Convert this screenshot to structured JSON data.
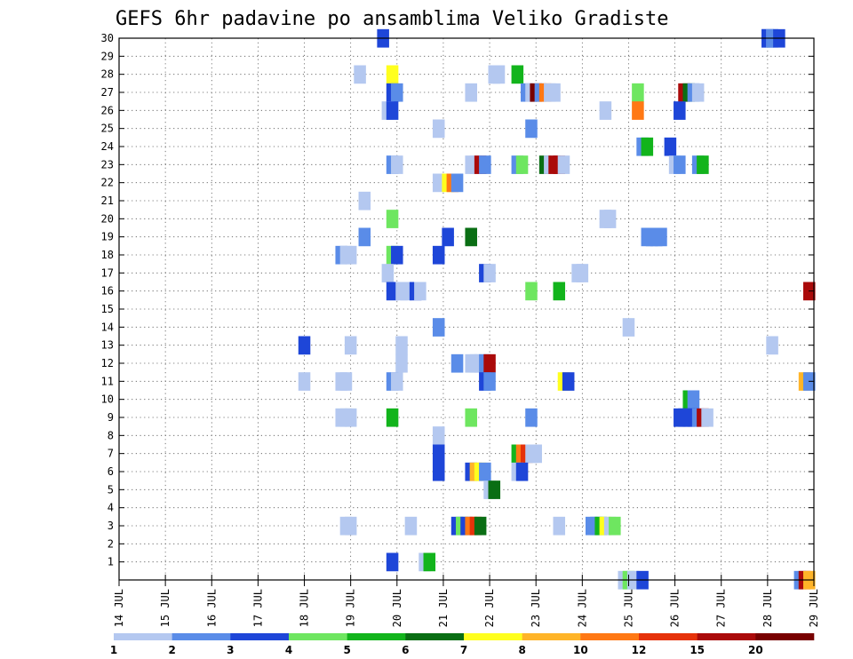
{
  "chart_data": {
    "type": "heatmap",
    "title": "GEFS 6hr padavine po ansamblima Veliko Gradiste",
    "ylim": [
      0,
      30
    ],
    "y_ticks": [
      "1",
      "2",
      "3",
      "4",
      "5",
      "6",
      "7",
      "8",
      "9",
      "10",
      "11",
      "12",
      "13",
      "14",
      "15",
      "16",
      "17",
      "18",
      "19",
      "20",
      "21",
      "22",
      "23",
      "24",
      "25",
      "26",
      "27",
      "28",
      "29",
      "30"
    ],
    "x_tick_labels": [
      "14 JUL",
      "15 JUL",
      "16 JUL",
      "17 JUL",
      "18 JUL",
      "19 JUL",
      "20 JUL",
      "21 JUL",
      "22 JUL",
      "23 JUL",
      "24 JUL",
      "25 JUL",
      "26 JUL",
      "27 JUL",
      "28 JUL",
      "29 JUL"
    ],
    "grid": true,
    "colorbar": {
      "colors": [
        "#b4c8f0",
        "#5a8ce8",
        "#1e46d8",
        "#6ee660",
        "#12b41c",
        "#0a6e14",
        "#ffff1e",
        "#ffb428",
        "#ff7814",
        "#e6320a",
        "#aa0a0a",
        "#780000"
      ],
      "labels": [
        "1",
        "2",
        "3",
        "4",
        "5",
        "6",
        "7",
        "8",
        "10",
        "12",
        "15",
        "20"
      ],
      "label_positions": [
        0,
        1,
        2,
        3,
        4,
        5,
        6,
        7,
        8,
        9,
        10,
        11
      ]
    },
    "cells": [
      {
        "m": 30,
        "t": 28.0,
        "c": 2
      },
      {
        "m": 30,
        "t": 28.0,
        "c": 2
      },
      {
        "m": 30,
        "t": 28.1,
        "c": 0
      },
      {
        "m": 30,
        "t": 28.1,
        "c": 1
      },
      {
        "m": 30,
        "t": 19.7,
        "c": 2
      },
      {
        "m": 30,
        "t": 28.25,
        "c": 2
      },
      {
        "m": 28,
        "t": 19.2,
        "c": 0
      },
      {
        "m": 28,
        "t": 19.9,
        "c": 6
      },
      {
        "m": 28,
        "t": 22.1,
        "c": 0
      },
      {
        "m": 28,
        "t": 22.2,
        "c": 0
      },
      {
        "m": 28,
        "t": 22.6,
        "c": 4
      },
      {
        "m": 27,
        "t": 19.9,
        "c": 2
      },
      {
        "m": 27,
        "t": 20.0,
        "c": 1
      },
      {
        "m": 27,
        "t": 21.6,
        "c": 0
      },
      {
        "m": 27,
        "t": 22.8,
        "c": 1
      },
      {
        "m": 27,
        "t": 22.9,
        "c": 0
      },
      {
        "m": 27,
        "t": 23.0,
        "c": 11
      },
      {
        "m": 27,
        "t": 23.1,
        "c": 1
      },
      {
        "m": 27,
        "t": 23.2,
        "c": 8
      },
      {
        "m": 27,
        "t": 23.3,
        "c": 0
      },
      {
        "m": 27,
        "t": 23.4,
        "c": 0
      },
      {
        "m": 27,
        "t": 25.2,
        "c": 3
      },
      {
        "m": 27,
        "t": 26.2,
        "c": 10
      },
      {
        "m": 27,
        "t": 26.3,
        "c": 5
      },
      {
        "m": 27,
        "t": 26.4,
        "c": 1
      },
      {
        "m": 27,
        "t": 26.5,
        "c": 0
      },
      {
        "m": 26,
        "t": 19.8,
        "c": 0
      },
      {
        "m": 26,
        "t": 19.9,
        "c": 2
      },
      {
        "m": 26,
        "t": 24.5,
        "c": 0
      },
      {
        "m": 26,
        "t": 25.2,
        "c": 8
      },
      {
        "m": 26,
        "t": 26.1,
        "c": 2
      },
      {
        "m": 25,
        "t": 20.9,
        "c": 0
      },
      {
        "m": 25,
        "t": 22.9,
        "c": 1
      },
      {
        "m": 24,
        "t": 25.3,
        "c": 1
      },
      {
        "m": 24,
        "t": 25.4,
        "c": 4
      },
      {
        "m": 24,
        "t": 25.9,
        "c": 2
      },
      {
        "m": 23,
        "t": 19.9,
        "c": 1
      },
      {
        "m": 23,
        "t": 20.0,
        "c": 0
      },
      {
        "m": 23,
        "t": 21.6,
        "c": 0
      },
      {
        "m": 23,
        "t": 21.7,
        "c": 0
      },
      {
        "m": 23,
        "t": 21.8,
        "c": 10
      },
      {
        "m": 23,
        "t": 21.9,
        "c": 1
      },
      {
        "m": 23,
        "t": 22.6,
        "c": 1
      },
      {
        "m": 23,
        "t": 22.7,
        "c": 3
      },
      {
        "m": 23,
        "t": 23.2,
        "c": 5
      },
      {
        "m": 23,
        "t": 23.3,
        "c": 0
      },
      {
        "m": 23,
        "t": 23.4,
        "c": 10
      },
      {
        "m": 23,
        "t": 23.5,
        "c": 10
      },
      {
        "m": 23,
        "t": 23.6,
        "c": 0
      },
      {
        "m": 23,
        "t": 26.0,
        "c": 0
      },
      {
        "m": 23,
        "t": 26.1,
        "c": 1
      },
      {
        "m": 23,
        "t": 26.5,
        "c": 1
      },
      {
        "m": 23,
        "t": 26.6,
        "c": 4
      },
      {
        "m": 22,
        "t": 20.9,
        "c": 0
      },
      {
        "m": 22,
        "t": 21.1,
        "c": 6
      },
      {
        "m": 22,
        "t": 21.2,
        "c": 8
      },
      {
        "m": 22,
        "t": 21.3,
        "c": 1
      },
      {
        "m": 21,
        "t": 19.3,
        "c": 0
      },
      {
        "m": 20,
        "t": 19.9,
        "c": 3
      },
      {
        "m": 20,
        "t": 24.5,
        "c": 0
      },
      {
        "m": 20,
        "t": 24.6,
        "c": 0
      },
      {
        "m": 19,
        "t": 19.3,
        "c": 1
      },
      {
        "m": 19,
        "t": 21.1,
        "c": 2
      },
      {
        "m": 19,
        "t": 21.6,
        "c": 5
      },
      {
        "m": 19,
        "t": 25.4,
        "c": 1
      },
      {
        "m": 19,
        "t": 25.5,
        "c": 1
      },
      {
        "m": 19,
        "t": 25.6,
        "c": 1
      },
      {
        "m": 19,
        "t": 25.7,
        "c": 1
      },
      {
        "m": 18,
        "t": 18.8,
        "c": 1
      },
      {
        "m": 18,
        "t": 18.9,
        "c": 0
      },
      {
        "m": 18,
        "t": 19.0,
        "c": 0
      },
      {
        "m": 18,
        "t": 19.9,
        "c": 3
      },
      {
        "m": 18,
        "t": 20.0,
        "c": 2
      },
      {
        "m": 18,
        "t": 20.9,
        "c": 2
      },
      {
        "m": 17,
        "t": 19.8,
        "c": 0
      },
      {
        "m": 17,
        "t": 21.9,
        "c": 2
      },
      {
        "m": 17,
        "t": 22.0,
        "c": 0
      },
      {
        "m": 17,
        "t": 23.9,
        "c": 0
      },
      {
        "m": 17,
        "t": 24.0,
        "c": 0
      },
      {
        "m": 16,
        "t": 19.9,
        "c": 2
      },
      {
        "m": 16,
        "t": 20.1,
        "c": 0
      },
      {
        "m": 16,
        "t": 20.2,
        "c": 0
      },
      {
        "m": 16,
        "t": 20.4,
        "c": 2
      },
      {
        "m": 16,
        "t": 20.5,
        "c": 0
      },
      {
        "m": 16,
        "t": 22.9,
        "c": 3
      },
      {
        "m": 16,
        "t": 23.5,
        "c": 4
      },
      {
        "m": 16,
        "t": 28.9,
        "c": 10
      },
      {
        "m": 14,
        "t": 20.9,
        "c": 1
      },
      {
        "m": 14,
        "t": 25.0,
        "c": 0
      },
      {
        "m": 13,
        "t": 18.0,
        "c": 2
      },
      {
        "m": 13,
        "t": 19.0,
        "c": 0
      },
      {
        "m": 13,
        "t": 20.1,
        "c": 0
      },
      {
        "m": 13,
        "t": 28.1,
        "c": 0
      },
      {
        "m": 12,
        "t": 20.1,
        "c": 0
      },
      {
        "m": 12,
        "t": 21.3,
        "c": 1
      },
      {
        "m": 12,
        "t": 21.6,
        "c": 0
      },
      {
        "m": 12,
        "t": 21.7,
        "c": 0
      },
      {
        "m": 12,
        "t": 21.8,
        "c": 0
      },
      {
        "m": 12,
        "t": 21.9,
        "c": 1
      },
      {
        "m": 12,
        "t": 22.0,
        "c": 10
      },
      {
        "m": 11,
        "t": 18.0,
        "c": 0
      },
      {
        "m": 11,
        "t": 18.8,
        "c": 0
      },
      {
        "m": 11,
        "t": 18.9,
        "c": 0
      },
      {
        "m": 11,
        "t": 19.9,
        "c": 1
      },
      {
        "m": 11,
        "t": 20.0,
        "c": 0
      },
      {
        "m": 11,
        "t": 21.9,
        "c": 2
      },
      {
        "m": 11,
        "t": 22.0,
        "c": 1
      },
      {
        "m": 11,
        "t": 23.6,
        "c": 6
      },
      {
        "m": 11,
        "t": 23.7,
        "c": 2
      },
      {
        "m": 11,
        "t": 28.8,
        "c": 7
      },
      {
        "m": 11,
        "t": 28.9,
        "c": 1
      },
      {
        "m": 10,
        "t": 26.3,
        "c": 4
      },
      {
        "m": 10,
        "t": 26.4,
        "c": 1
      },
      {
        "m": 9,
        "t": 18.8,
        "c": 0
      },
      {
        "m": 9,
        "t": 18.9,
        "c": 0
      },
      {
        "m": 9,
        "t": 19.0,
        "c": 0
      },
      {
        "m": 9,
        "t": 19.9,
        "c": 4
      },
      {
        "m": 9,
        "t": 21.6,
        "c": 3
      },
      {
        "m": 9,
        "t": 22.9,
        "c": 1
      },
      {
        "m": 9,
        "t": 26.1,
        "c": 2
      },
      {
        "m": 9,
        "t": 26.2,
        "c": 2
      },
      {
        "m": 9,
        "t": 26.3,
        "c": 2
      },
      {
        "m": 9,
        "t": 26.4,
        "c": 2
      },
      {
        "m": 9,
        "t": 26.5,
        "c": 1
      },
      {
        "m": 9,
        "t": 26.6,
        "c": 10
      },
      {
        "m": 9,
        "t": 26.7,
        "c": 0
      },
      {
        "m": 8,
        "t": 20.9,
        "c": 0
      },
      {
        "m": 7,
        "t": 20.9,
        "c": 2
      },
      {
        "m": 7,
        "t": 22.6,
        "c": 4
      },
      {
        "m": 7,
        "t": 22.7,
        "c": 8
      },
      {
        "m": 7,
        "t": 22.8,
        "c": 9
      },
      {
        "m": 7,
        "t": 22.9,
        "c": 0
      },
      {
        "m": 7,
        "t": 23.0,
        "c": 0
      },
      {
        "m": 6,
        "t": 20.9,
        "c": 2
      },
      {
        "m": 6,
        "t": 21.6,
        "c": 2
      },
      {
        "m": 6,
        "t": 21.7,
        "c": 7
      },
      {
        "m": 6,
        "t": 21.8,
        "c": 6
      },
      {
        "m": 6,
        "t": 21.9,
        "c": 1
      },
      {
        "m": 6,
        "t": 22.6,
        "c": 0
      },
      {
        "m": 6,
        "t": 22.7,
        "c": 2
      },
      {
        "m": 5,
        "t": 22.0,
        "c": 0
      },
      {
        "m": 5,
        "t": 22.1,
        "c": 5
      },
      {
        "m": 3,
        "t": 18.9,
        "c": 0
      },
      {
        "m": 3,
        "t": 19.0,
        "c": 0
      },
      {
        "m": 3,
        "t": 20.3,
        "c": 0
      },
      {
        "m": 3,
        "t": 21.3,
        "c": 2
      },
      {
        "m": 3,
        "t": 21.4,
        "c": 3
      },
      {
        "m": 3,
        "t": 21.5,
        "c": 2
      },
      {
        "m": 3,
        "t": 21.6,
        "c": 8
      },
      {
        "m": 3,
        "t": 21.7,
        "c": 9
      },
      {
        "m": 3,
        "t": 21.8,
        "c": 5
      },
      {
        "m": 3,
        "t": 23.5,
        "c": 0
      },
      {
        "m": 3,
        "t": 24.2,
        "c": 1
      },
      {
        "m": 3,
        "t": 24.3,
        "c": 1
      },
      {
        "m": 3,
        "t": 24.4,
        "c": 4
      },
      {
        "m": 3,
        "t": 24.5,
        "c": 6
      },
      {
        "m": 3,
        "t": 24.6,
        "c": 0
      },
      {
        "m": 3,
        "t": 24.7,
        "c": 3
      },
      {
        "m": 1,
        "t": 19.9,
        "c": 2
      },
      {
        "m": 1,
        "t": 20.6,
        "c": 0
      },
      {
        "m": 1,
        "t": 20.7,
        "c": 4
      },
      {
        "m": 0,
        "t": 24.9,
        "c": 0
      },
      {
        "m": 0,
        "t": 25.0,
        "c": 3
      },
      {
        "m": 0,
        "t": 25.1,
        "c": 0
      },
      {
        "m": 0,
        "t": 25.3,
        "c": 2
      },
      {
        "m": 0,
        "t": 28.7,
        "c": 1
      },
      {
        "m": 0,
        "t": 28.8,
        "c": 10
      },
      {
        "m": 0,
        "t": 28.9,
        "c": 7
      }
    ]
  }
}
